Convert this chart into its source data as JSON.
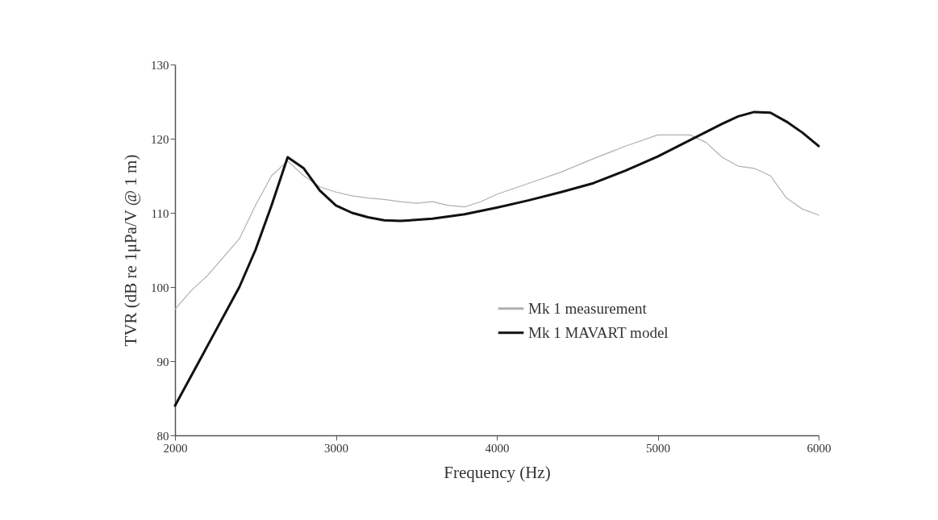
{
  "chart_data": {
    "type": "line",
    "xlabel": "Frequency (Hz)",
    "ylabel": "TVR (dB re 1μPa/V @ 1 m)",
    "xlim": [
      2000,
      6000
    ],
    "xticks": [
      2000,
      3000,
      4000,
      5000,
      6000
    ],
    "ylim": [
      80,
      130
    ],
    "yticks": [
      80,
      90,
      100,
      110,
      120,
      130
    ],
    "grid": false,
    "legend": "right",
    "series": [
      {
        "name": "Mk 1 measurement",
        "color": "#b0b0b0",
        "x": [
          2000,
          2100,
          2200,
          2300,
          2400,
          2500,
          2600,
          2700,
          2800,
          2900,
          3000,
          3100,
          3200,
          3300,
          3400,
          3500,
          3600,
          3700,
          3800,
          3900,
          4000,
          4200,
          4400,
          4600,
          4800,
          5000,
          5200,
          5300,
          5400,
          5500,
          5600,
          5700,
          5800,
          5900,
          6000
        ],
        "values": [
          97,
          99.5,
          101.5,
          104,
          106.5,
          111,
          115,
          117,
          115,
          113.5,
          112.8,
          112.3,
          112,
          111.8,
          111.5,
          111.3,
          111.5,
          111,
          110.8,
          111.5,
          112.5,
          114,
          115.5,
          117.3,
          119,
          120.5,
          120.5,
          119.5,
          117.5,
          116.3,
          116,
          115,
          112,
          110.5,
          109.7
        ]
      },
      {
        "name": "Mk 1 MAVART model",
        "color": "#111111",
        "x": [
          2000,
          2200,
          2400,
          2500,
          2600,
          2700,
          2800,
          2900,
          3000,
          3100,
          3200,
          3300,
          3400,
          3600,
          3800,
          4000,
          4200,
          4400,
          4600,
          4800,
          5000,
          5200,
          5400,
          5500,
          5600,
          5700,
          5800,
          5900,
          6000
        ],
        "values": [
          84,
          92,
          100,
          105,
          111,
          117.5,
          116,
          113,
          111,
          110,
          109.4,
          109,
          108.9,
          109.2,
          109.8,
          110.7,
          111.7,
          112.8,
          114,
          115.7,
          117.6,
          119.8,
          122,
          123,
          123.6,
          123.5,
          122.3,
          120.8,
          119
        ]
      }
    ]
  }
}
